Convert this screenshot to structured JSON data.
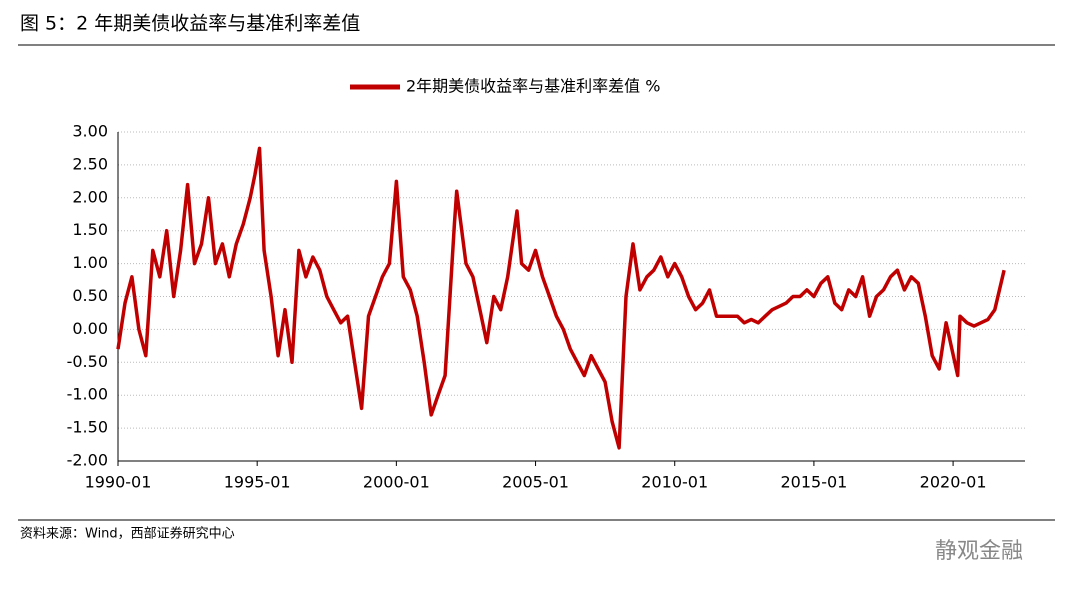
{
  "chart_data": {
    "type": "line",
    "title": "图 5：2 年期美债收益率与基准利率差值",
    "source": "资料来源：Wind，西部证券研究中心",
    "watermark": "静观金融",
    "series": [
      {
        "name": "2年期美债收益率与基准利率差值 %",
        "color": "#c00000",
        "values": [
          -0.3,
          0.4,
          0.8,
          0.0,
          -0.4,
          1.2,
          0.8,
          1.5,
          0.5,
          1.2,
          2.2,
          1.0,
          1.3,
          2.0,
          1.0,
          1.3,
          0.8,
          1.3,
          1.6,
          2.0,
          2.35,
          2.75,
          1.2,
          0.5,
          -0.4,
          0.3,
          -0.5,
          1.2,
          0.8,
          1.1,
          0.9,
          0.5,
          0.3,
          0.1,
          0.2,
          -0.5,
          -1.2,
          0.2,
          0.5,
          0.8,
          1.0,
          2.25,
          0.8,
          0.6,
          0.2,
          -0.5,
          -1.3,
          -1.0,
          -0.7,
          1.0,
          1.6,
          2.1,
          1.0,
          0.8,
          0.3,
          -0.2,
          0.5,
          0.3,
          0.8,
          1.8,
          1.0,
          0.9,
          1.2,
          0.8,
          0.5,
          0.2,
          0.0,
          -0.3,
          -0.5,
          -0.7,
          -0.4,
          -0.6,
          -0.8,
          -1.4,
          -1.8,
          0.5,
          1.3,
          0.6,
          0.8,
          0.9,
          1.1,
          0.8,
          1.0,
          0.8,
          0.5,
          0.3,
          0.4,
          0.6,
          0.2,
          0.2,
          0.2,
          0.2,
          0.1,
          0.15,
          0.1,
          0.2,
          0.3,
          0.35,
          0.4,
          0.5,
          0.5,
          0.6,
          0.5,
          0.7,
          0.8,
          0.4,
          0.3,
          0.6,
          0.5,
          0.8,
          0.2,
          0.5,
          0.6,
          0.8,
          0.9,
          0.6,
          0.8,
          0.7,
          0.2,
          -0.4,
          -0.6,
          0.1,
          -0.7,
          0.2,
          0.1,
          0.05,
          0.1,
          0.15,
          0.3,
          0.9
        ]
      }
    ],
    "x": [
      "1990-01",
      "1990-04",
      "1990-07",
      "1990-10",
      "1991-01",
      "1991-04",
      "1991-07",
      "1991-10",
      "1992-01",
      "1992-04",
      "1992-07",
      "1992-10",
      "1993-01",
      "1993-04",
      "1993-07",
      "1993-10",
      "1994-01",
      "1994-04",
      "1994-07",
      "1994-10",
      "1994-12",
      "1995-02",
      "1995-04",
      "1995-07",
      "1995-10",
      "1996-01",
      "1996-04",
      "1996-07",
      "1996-10",
      "1997-01",
      "1997-04",
      "1997-07",
      "1997-10",
      "1998-01",
      "1998-04",
      "1998-07",
      "1998-10",
      "1999-01",
      "1999-04",
      "1999-07",
      "1999-10",
      "2000-01",
      "2000-04",
      "2000-07",
      "2000-10",
      "2001-01",
      "2001-04",
      "2001-07",
      "2001-10",
      "2002-01",
      "2002-02",
      "2002-03",
      "2002-07",
      "2002-10",
      "2003-01",
      "2003-04",
      "2003-07",
      "2003-10",
      "2004-01",
      "2004-05",
      "2004-07",
      "2004-10",
      "2005-01",
      "2005-04",
      "2005-07",
      "2005-10",
      "2006-01",
      "2006-04",
      "2006-07",
      "2006-10",
      "2007-01",
      "2007-04",
      "2007-07",
      "2007-10",
      "2008-01",
      "2008-04",
      "2008-07",
      "2008-10",
      "2009-01",
      "2009-04",
      "2009-07",
      "2009-10",
      "2010-01",
      "2010-04",
      "2010-07",
      "2010-10",
      "2011-01",
      "2011-04",
      "2011-07",
      "2011-10",
      "2012-01",
      "2012-04",
      "2012-07",
      "2012-10",
      "2013-01",
      "2013-04",
      "2013-07",
      "2013-10",
      "2014-01",
      "2014-04",
      "2014-07",
      "2014-10",
      "2015-01",
      "2015-04",
      "2015-07",
      "2015-10",
      "2016-01",
      "2016-04",
      "2016-07",
      "2016-10",
      "2017-01",
      "2017-04",
      "2017-07",
      "2017-10",
      "2018-01",
      "2018-04",
      "2018-07",
      "2018-10",
      "2019-01",
      "2019-04",
      "2019-07",
      "2019-10",
      "2020-03",
      "2020-04",
      "2020-07",
      "2020-10",
      "2021-01",
      "2021-04",
      "2021-07",
      "2021-11"
    ],
    "xlim": [
      "1990-01",
      "2022-08"
    ],
    "xticks": [
      "1990-01",
      "1995-01",
      "2000-01",
      "2005-01",
      "2010-01",
      "2015-01",
      "2020-01"
    ],
    "ylim": [
      -2,
      3
    ],
    "yticks": [
      {
        "value": 3,
        "label": "3.00"
      },
      {
        "value": 2.5,
        "label": "2.50"
      },
      {
        "value": 2,
        "label": "2.00"
      },
      {
        "value": 1.5,
        "label": "1.50"
      },
      {
        "value": 1,
        "label": "1.00"
      },
      {
        "value": 0.5,
        "label": "0.50"
      },
      {
        "value": 0,
        "label": "0.00"
      },
      {
        "value": -0.5,
        "label": "-0.50"
      },
      {
        "value": -1,
        "label": "-1.00"
      },
      {
        "value": -1.5,
        "label": "-1.50"
      },
      {
        "value": -2,
        "label": "-2.00"
      }
    ],
    "grid": true,
    "legend": "top"
  }
}
